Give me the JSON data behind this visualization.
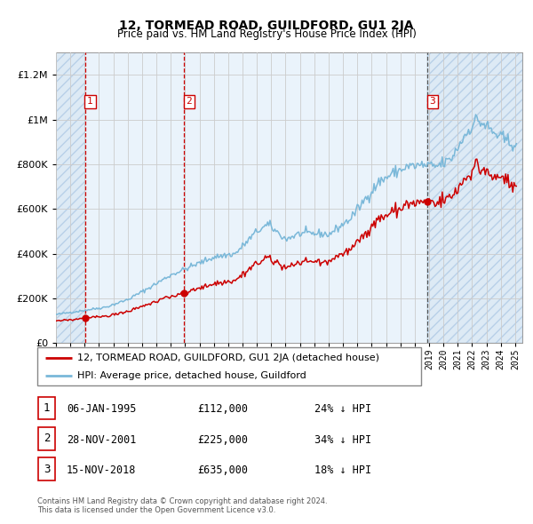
{
  "title": "12, TORMEAD ROAD, GUILDFORD, GU1 2JA",
  "subtitle": "Price paid vs. HM Land Registry's House Price Index (HPI)",
  "sale_dates_year": [
    1995.02,
    2001.91,
    2018.88
  ],
  "sale_prices": [
    112000,
    225000,
    635000
  ],
  "sale_info": [
    {
      "num": "1",
      "date": "06-JAN-1995",
      "price": "£112,000",
      "pct": "24% ↓ HPI"
    },
    {
      "num": "2",
      "date": "28-NOV-2001",
      "price": "£225,000",
      "pct": "34% ↓ HPI"
    },
    {
      "num": "3",
      "date": "15-NOV-2018",
      "price": "£635,000",
      "pct": "18% ↓ HPI"
    }
  ],
  "legend_line1": "12, TORMEAD ROAD, GUILDFORD, GU1 2JA (detached house)",
  "legend_line2": "HPI: Average price, detached house, Guildford",
  "footer": "Contains HM Land Registry data © Crown copyright and database right 2024.\nThis data is licensed under the Open Government Licence v3.0.",
  "hpi_color": "#7ab8d9",
  "price_color": "#cc0000",
  "bg_hatched_color": "#ddeaf5",
  "bg_plain_color": "#eaf3fb",
  "grid_color": "#cccccc",
  "ylim": [
    0,
    1300000
  ],
  "xlim_start": 1993.0,
  "xlim_end": 2025.5
}
